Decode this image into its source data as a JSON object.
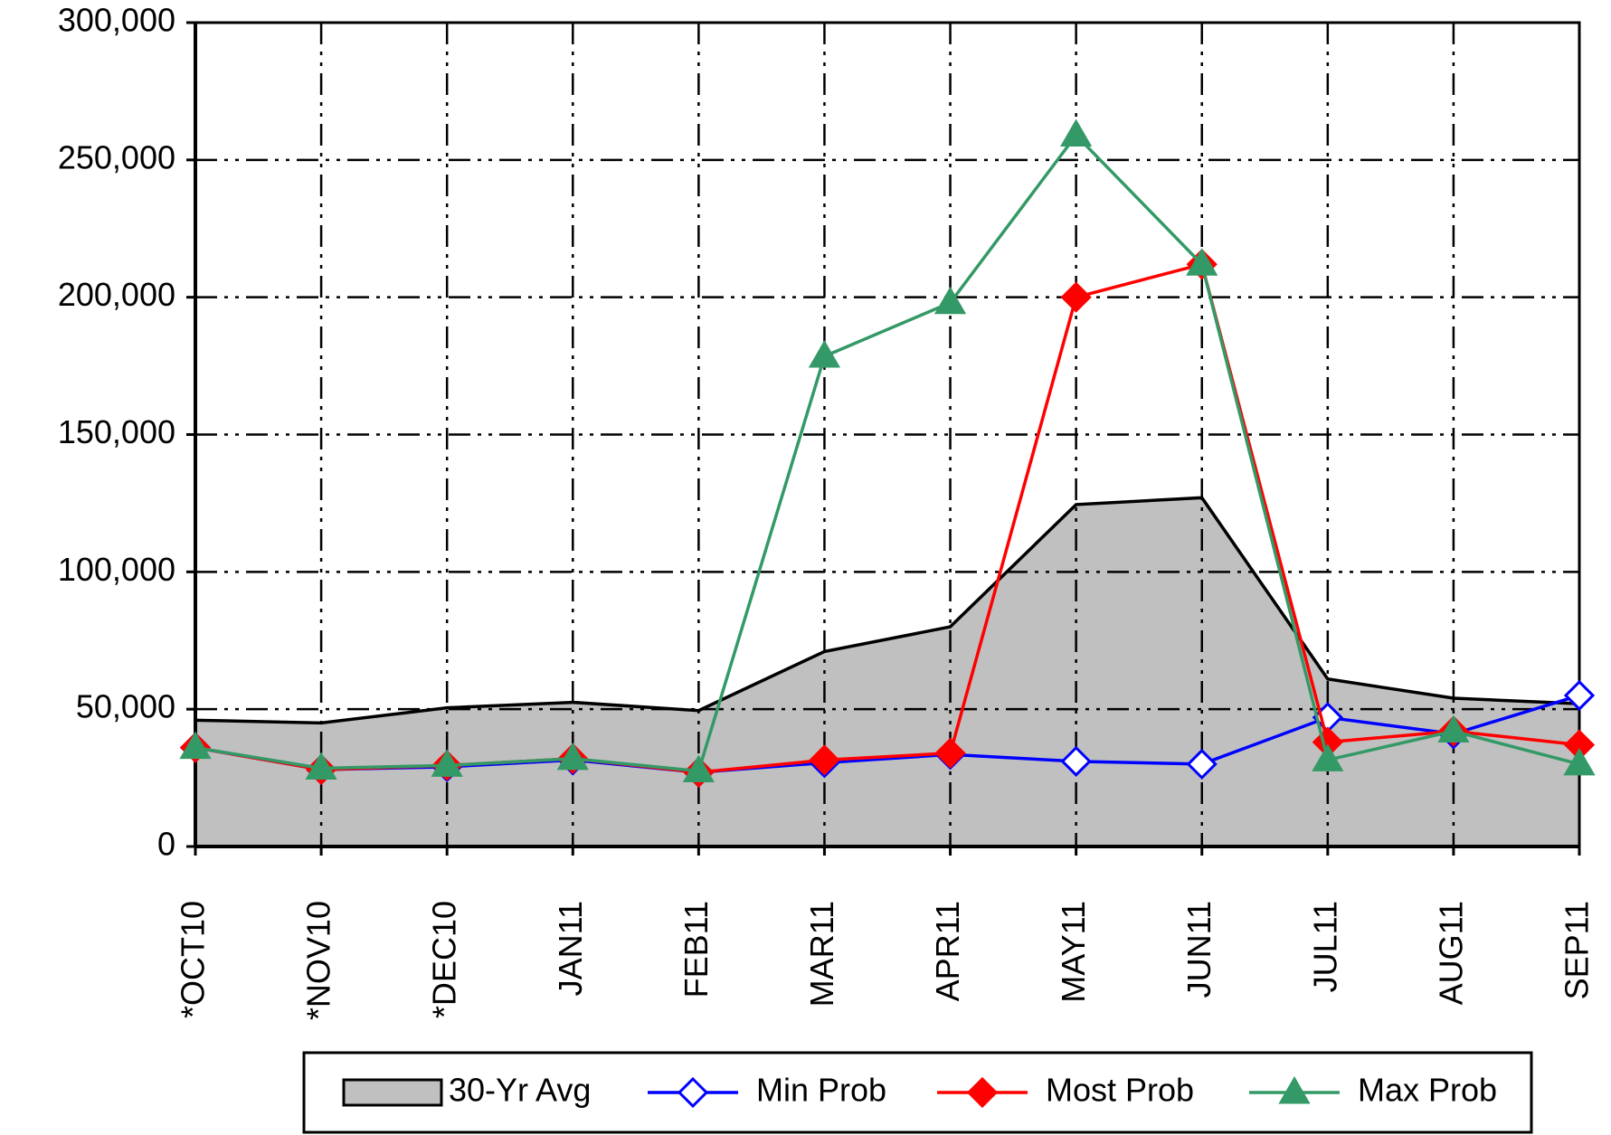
{
  "chart_data": {
    "type": "line",
    "categories": [
      "*OCT10",
      "*NOV10",
      "*DEC10",
      "JAN11",
      "FEB11",
      "MAR11",
      "APR11",
      "MAY11",
      "JUN11",
      "JUL11",
      "AUG11",
      "SEP11"
    ],
    "series": [
      {
        "name": "30-Yr Avg",
        "type": "area",
        "color": "#c0c0c0",
        "values": [
          46000,
          45000,
          50500,
          52500,
          49500,
          71000,
          80000,
          124500,
          127000,
          61000,
          54000,
          52000
        ]
      },
      {
        "name": "Min Prob",
        "marker": "open-diamond",
        "color": "#0000ff",
        "values": [
          36000,
          28000,
          29000,
          31500,
          27000,
          30500,
          33500,
          31000,
          30000,
          47000,
          41000,
          55000
        ]
      },
      {
        "name": "Most Prob",
        "marker": "diamond",
        "color": "#ff0000",
        "values": [
          36000,
          28000,
          29500,
          32000,
          27000,
          31500,
          34000,
          200000,
          212000,
          38000,
          42000,
          37000
        ]
      },
      {
        "name": "Max Prob",
        "marker": "triangle",
        "color": "#339966",
        "values": [
          36000,
          28500,
          29500,
          32000,
          27500,
          178500,
          198000,
          259000,
          212000,
          31500,
          42000,
          30000
        ]
      }
    ],
    "ylim": [
      0,
      300000
    ],
    "yticks": [
      0,
      {
        "value": 50000,
        "label": "50,000"
      },
      {
        "value": 100000,
        "label": "100,000"
      },
      {
        "value": 150000,
        "label": "150,000"
      },
      {
        "value": 200000,
        "label": "200,000"
      },
      {
        "value": 250000,
        "label": "250,000"
      },
      {
        "value": 300000,
        "label": "300,000"
      }
    ],
    "grid": true,
    "legend": "bottom"
  }
}
